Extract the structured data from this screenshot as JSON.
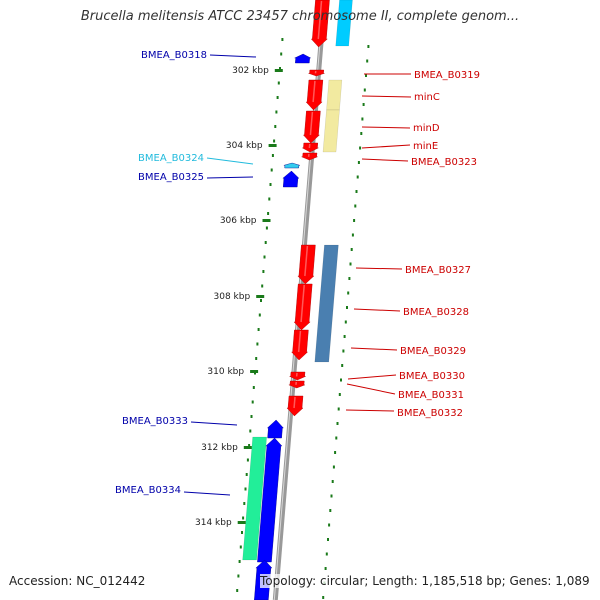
{
  "title": "Brucella melitensis ATCC 23457 chromosome II, complete genom...",
  "footer": {
    "accession": "Accession: NC_012442",
    "topology": "Topology: circular; Length: 1,185,518 bp; Genes: 1,089"
  },
  "ticks": [
    {
      "label": "302 kbp"
    },
    {
      "label": "304 kbp"
    },
    {
      "label": "306 kbp"
    },
    {
      "label": "308 kbp"
    },
    {
      "label": "310 kbp"
    },
    {
      "label": "312 kbp"
    },
    {
      "label": "314 kbp"
    }
  ],
  "colors": {
    "backbone": "#999999",
    "forward_gene": "#ff0000",
    "reverse_gene": "#0000ff",
    "reverse_gene_light": "#33ccee",
    "tick": "#1a7a1a",
    "forward_label": "#cc0000",
    "reverse_label": "#0000aa",
    "cyan_label": "#22bbdd",
    "cog_yellow": "#f2eaa0",
    "cog_steel": "#4a7fb0",
    "cog_green": "#22ee99",
    "cog_cyan": "#00ccff"
  },
  "genes_forward": [
    {
      "label": "BMEA_B0319"
    },
    {
      "label": "minC"
    },
    {
      "label": "minD"
    },
    {
      "label": "minE"
    },
    {
      "label": "BMEA_B0323"
    },
    {
      "label": "BMEA_B0327"
    },
    {
      "label": "BMEA_B0328"
    },
    {
      "label": "BMEA_B0329"
    },
    {
      "label": "BMEA_B0330"
    },
    {
      "label": "BMEA_B0331"
    },
    {
      "label": "BMEA_B0332"
    }
  ],
  "genes_reverse": [
    {
      "label": "BMEA_B0318"
    },
    {
      "label": "BMEA_B0324"
    },
    {
      "label": "BMEA_B0325"
    },
    {
      "label": "BMEA_B0333"
    },
    {
      "label": "BMEA_B0334"
    }
  ]
}
